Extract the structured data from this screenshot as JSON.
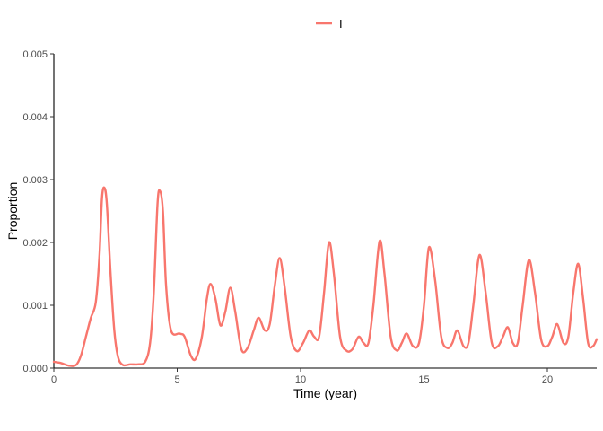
{
  "chart_data": {
    "type": "line",
    "title": "",
    "xlabel": "Time (year)",
    "ylabel": "Proportion",
    "xlim": [
      0,
      22
    ],
    "ylim": [
      0,
      0.005
    ],
    "x_ticks": [
      0,
      5,
      10,
      15,
      20
    ],
    "x_tick_labels": [
      "0",
      "5",
      "10",
      "15",
      "20"
    ],
    "y_ticks": [
      0,
      0.001,
      0.002,
      0.003,
      0.004,
      0.005
    ],
    "y_tick_labels": [
      "0.000",
      "0.001",
      "0.002",
      "0.003",
      "0.004",
      "0.005"
    ],
    "grid": false,
    "legend_position": "top",
    "series": [
      {
        "name": "I",
        "color": "#F8766D",
        "points": [
          [
            0,
            0.0001
          ],
          [
            0.3,
            8e-05
          ],
          [
            0.6,
            4e-05
          ],
          [
            0.9,
            5e-05
          ],
          [
            1.1,
            0.0002
          ],
          [
            1.3,
            0.0005
          ],
          [
            1.5,
            0.0008
          ],
          [
            1.7,
            0.00105
          ],
          [
            1.85,
            0.0018
          ],
          [
            1.95,
            0.0027
          ],
          [
            2.05,
            0.00287
          ],
          [
            2.15,
            0.0026
          ],
          [
            2.3,
            0.0015
          ],
          [
            2.45,
            0.0006
          ],
          [
            2.6,
            0.00018
          ],
          [
            2.8,
            5e-05
          ],
          [
            3.1,
            6e-05
          ],
          [
            3.4,
            6e-05
          ],
          [
            3.7,
            0.0001
          ],
          [
            3.9,
            0.0004
          ],
          [
            4.05,
            0.0012
          ],
          [
            4.2,
            0.0026
          ],
          [
            4.3,
            0.00282
          ],
          [
            4.42,
            0.0025
          ],
          [
            4.55,
            0.0013
          ],
          [
            4.75,
            0.0006
          ],
          [
            5.1,
            0.00055
          ],
          [
            5.3,
            0.0005
          ],
          [
            5.55,
            0.0002
          ],
          [
            5.75,
            0.00015
          ],
          [
            6.0,
            0.0005
          ],
          [
            6.2,
            0.0011
          ],
          [
            6.35,
            0.00134
          ],
          [
            6.55,
            0.0011
          ],
          [
            6.75,
            0.00068
          ],
          [
            6.95,
            0.0009
          ],
          [
            7.15,
            0.00128
          ],
          [
            7.35,
            0.0009
          ],
          [
            7.6,
            0.0003
          ],
          [
            7.85,
            0.00032
          ],
          [
            8.1,
            0.0006
          ],
          [
            8.3,
            0.0008
          ],
          [
            8.55,
            0.0006
          ],
          [
            8.75,
            0.0007
          ],
          [
            8.95,
            0.0013
          ],
          [
            9.15,
            0.00175
          ],
          [
            9.35,
            0.0013
          ],
          [
            9.6,
            0.0005
          ],
          [
            9.85,
            0.00027
          ],
          [
            10.1,
            0.0004
          ],
          [
            10.35,
            0.0006
          ],
          [
            10.55,
            0.0005
          ],
          [
            10.75,
            0.0005
          ],
          [
            10.95,
            0.0012
          ],
          [
            11.15,
            0.002
          ],
          [
            11.35,
            0.0015
          ],
          [
            11.6,
            0.0005
          ],
          [
            11.85,
            0.00028
          ],
          [
            12.1,
            0.0003
          ],
          [
            12.35,
            0.0005
          ],
          [
            12.55,
            0.0004
          ],
          [
            12.75,
            0.0004
          ],
          [
            12.95,
            0.001
          ],
          [
            13.2,
            0.00202
          ],
          [
            13.4,
            0.0015
          ],
          [
            13.65,
            0.0005
          ],
          [
            13.9,
            0.00028
          ],
          [
            14.1,
            0.0004
          ],
          [
            14.3,
            0.00055
          ],
          [
            14.55,
            0.00035
          ],
          [
            14.8,
            0.0004
          ],
          [
            15.0,
            0.001
          ],
          [
            15.2,
            0.00192
          ],
          [
            15.45,
            0.0014
          ],
          [
            15.7,
            0.0005
          ],
          [
            15.95,
            0.00032
          ],
          [
            16.15,
            0.0004
          ],
          [
            16.35,
            0.0006
          ],
          [
            16.6,
            0.00035
          ],
          [
            16.8,
            0.0004
          ],
          [
            17.0,
            0.001
          ],
          [
            17.25,
            0.0018
          ],
          [
            17.5,
            0.0012
          ],
          [
            17.75,
            0.0004
          ],
          [
            18.0,
            0.00035
          ],
          [
            18.2,
            0.0005
          ],
          [
            18.4,
            0.00065
          ],
          [
            18.6,
            0.0004
          ],
          [
            18.8,
            0.0004
          ],
          [
            19.0,
            0.001
          ],
          [
            19.25,
            0.00172
          ],
          [
            19.5,
            0.0012
          ],
          [
            19.75,
            0.00045
          ],
          [
            20.0,
            0.00035
          ],
          [
            20.2,
            0.0005
          ],
          [
            20.4,
            0.0007
          ],
          [
            20.65,
            0.0004
          ],
          [
            20.85,
            0.0005
          ],
          [
            21.05,
            0.0012
          ],
          [
            21.25,
            0.00166
          ],
          [
            21.45,
            0.0011
          ],
          [
            21.65,
            0.0004
          ],
          [
            21.85,
            0.00035
          ],
          [
            22.0,
            0.00046
          ]
        ]
      }
    ]
  }
}
